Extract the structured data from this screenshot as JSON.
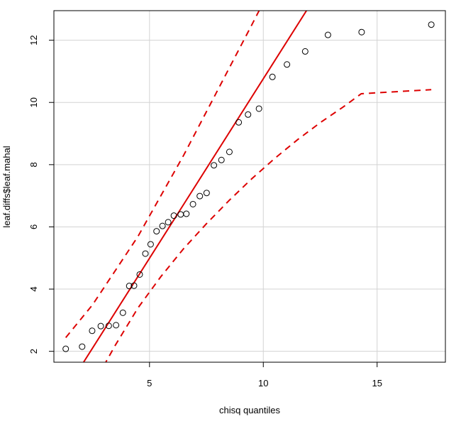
{
  "chart_data": {
    "type": "scatter",
    "title": "",
    "xlabel": "chisq quantiles",
    "ylabel": "leaf.diffs$leaf.mahal",
    "xlim": [
      0.8,
      18.0
    ],
    "ylim": [
      1.65,
      12.95
    ],
    "x_ticks": [
      5,
      10,
      15
    ],
    "y_ticks": [
      2,
      4,
      6,
      8,
      10,
      12
    ],
    "grid": true,
    "grid_color": "#d3d3d3",
    "point_color": "#000000",
    "line_color": "#dd0000",
    "points": [
      {
        "x": 1.32,
        "y": 2.08
      },
      {
        "x": 2.04,
        "y": 2.15
      },
      {
        "x": 2.48,
        "y": 2.66
      },
      {
        "x": 2.86,
        "y": 2.81
      },
      {
        "x": 3.21,
        "y": 2.82
      },
      {
        "x": 3.53,
        "y": 2.84
      },
      {
        "x": 3.83,
        "y": 3.24
      },
      {
        "x": 4.11,
        "y": 4.1
      },
      {
        "x": 4.32,
        "y": 4.11
      },
      {
        "x": 4.57,
        "y": 4.47
      },
      {
        "x": 4.82,
        "y": 5.14
      },
      {
        "x": 5.05,
        "y": 5.44
      },
      {
        "x": 5.31,
        "y": 5.86
      },
      {
        "x": 5.57,
        "y": 6.03
      },
      {
        "x": 5.82,
        "y": 6.15
      },
      {
        "x": 6.07,
        "y": 6.36
      },
      {
        "x": 6.37,
        "y": 6.4
      },
      {
        "x": 6.62,
        "y": 6.42
      },
      {
        "x": 6.91,
        "y": 6.73
      },
      {
        "x": 7.21,
        "y": 6.99
      },
      {
        "x": 7.51,
        "y": 7.09
      },
      {
        "x": 7.83,
        "y": 7.98
      },
      {
        "x": 8.16,
        "y": 8.15
      },
      {
        "x": 8.51,
        "y": 8.41
      },
      {
        "x": 8.92,
        "y": 9.36
      },
      {
        "x": 9.33,
        "y": 9.61
      },
      {
        "x": 9.81,
        "y": 9.8
      },
      {
        "x": 10.4,
        "y": 10.82
      },
      {
        "x": 11.04,
        "y": 11.22
      },
      {
        "x": 11.84,
        "y": 11.64
      },
      {
        "x": 12.84,
        "y": 12.17
      },
      {
        "x": 14.32,
        "y": 12.26
      },
      {
        "x": 17.38,
        "y": 12.5
      }
    ],
    "reference_line": [
      {
        "x": 2.0,
        "y": 1.53
      },
      {
        "x": 12.2,
        "y": 13.3
      }
    ],
    "upper_band": [
      {
        "x": 1.32,
        "y": 2.44
      },
      {
        "x": 2.5,
        "y": 3.5
      },
      {
        "x": 3.5,
        "y": 4.6
      },
      {
        "x": 4.5,
        "y": 5.7
      },
      {
        "x": 5.5,
        "y": 7.0
      },
      {
        "x": 6.5,
        "y": 8.3
      },
      {
        "x": 7.5,
        "y": 9.7
      },
      {
        "x": 8.5,
        "y": 11.1
      },
      {
        "x": 9.5,
        "y": 12.5
      },
      {
        "x": 10.2,
        "y": 13.5
      }
    ],
    "lower_band": [
      {
        "x": 2.5,
        "y": 0.9
      },
      {
        "x": 3.5,
        "y": 2.2
      },
      {
        "x": 4.5,
        "y": 3.4
      },
      {
        "x": 5.5,
        "y": 4.4
      },
      {
        "x": 6.5,
        "y": 5.3
      },
      {
        "x": 7.5,
        "y": 6.1
      },
      {
        "x": 8.5,
        "y": 6.85
      },
      {
        "x": 9.5,
        "y": 7.55
      },
      {
        "x": 10.5,
        "y": 8.2
      },
      {
        "x": 11.5,
        "y": 8.8
      },
      {
        "x": 12.5,
        "y": 9.35
      },
      {
        "x": 13.5,
        "y": 9.85
      },
      {
        "x": 14.3,
        "y": 10.28
      },
      {
        "x": 15.0,
        "y": 10.31
      },
      {
        "x": 17.38,
        "y": 10.41
      }
    ]
  }
}
